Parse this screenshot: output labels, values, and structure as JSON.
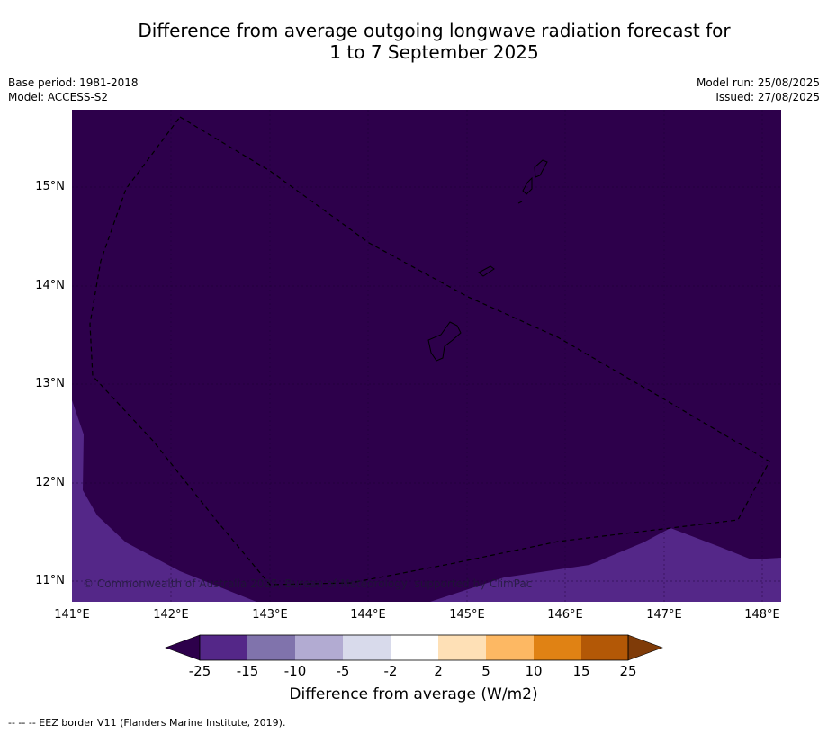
{
  "title_line1": "Difference from average outgoing longwave radiation forecast for",
  "title_line2": "1 to 7 September 2025",
  "meta_left": [
    "Base period: 1981-2018",
    "Model: ACCESS-S2"
  ],
  "meta_right": [
    "Model run: 25/08/2025",
    "Issued: 27/08/2025"
  ],
  "map": {
    "lat_labels": [
      "15°N",
      "14°N",
      "13°N",
      "12°N",
      "11°N"
    ],
    "lon_labels": [
      "141°E",
      "142°E",
      "143°E",
      "144°E",
      "145°E",
      "146°E",
      "147°E",
      "148°E"
    ],
    "copyright": "© Commonwealth of Australia 2025, Bureau of Meteorology, supported by ClimPac",
    "colors": {
      "dark_purple": "#2d004b",
      "mid_purple": "#542788"
    }
  },
  "colorbar": {
    "ticks": [
      "-25",
      "-15",
      "-10",
      "-5",
      "-2",
      "2",
      "5",
      "10",
      "15",
      "25"
    ],
    "colors": [
      "#2d004b",
      "#542788",
      "#8073ac",
      "#b2abd2",
      "#d8daeb",
      "#ffffff",
      "#fee0b6",
      "#fdb863",
      "#e08214",
      "#b35806",
      "#7f3b08"
    ],
    "title": "Difference from average (W/m2)"
  },
  "footer": "-- -- -- EEZ border V11 (Flanders Marine Institute, 2019)."
}
